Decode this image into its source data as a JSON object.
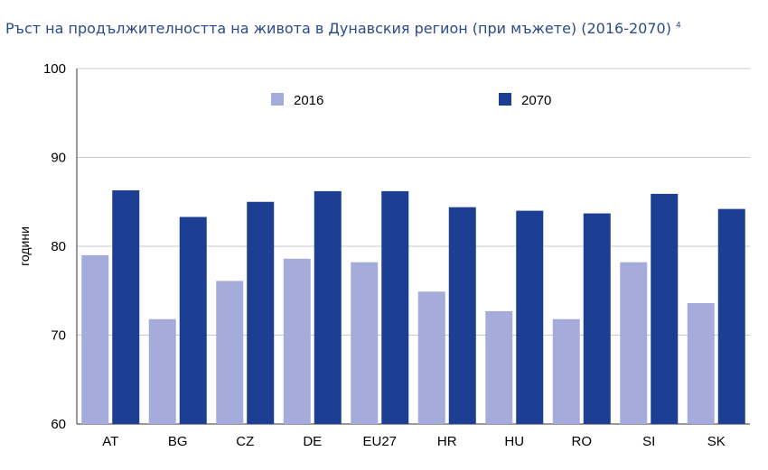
{
  "header": {
    "title": "Ръст на продължителността на живота в Дунавския регион (при мъжете) (2016-2070)",
    "footnote": "4"
  },
  "chart_data": {
    "type": "bar",
    "title": "Ръст на продължителността на живота в Дунавския регион (при мъжете) (2016-2070)",
    "xlabel": "",
    "ylabel": "години",
    "ylim": [
      60,
      100
    ],
    "yticks": [
      60,
      70,
      80,
      90,
      100
    ],
    "grid": true,
    "legend_position": "top-center",
    "categories": [
      "AT",
      "BG",
      "CZ",
      "DE",
      "EU27",
      "HR",
      "HU",
      "RO",
      "SI",
      "SK"
    ],
    "series": [
      {
        "name": "2016",
        "color": "#a5abdb",
        "values": [
          79.0,
          71.8,
          76.1,
          78.6,
          78.2,
          74.9,
          72.7,
          71.8,
          78.2,
          73.6
        ]
      },
      {
        "name": "2070",
        "color": "#1c3f94",
        "values": [
          86.3,
          83.3,
          85.0,
          86.2,
          86.2,
          84.4,
          84.0,
          83.7,
          85.9,
          84.2
        ]
      }
    ]
  }
}
